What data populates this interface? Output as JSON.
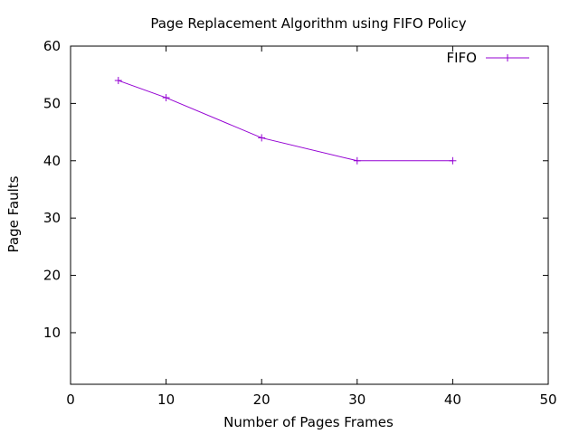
{
  "chart_data": {
    "type": "line",
    "title": "Page Replacement Algorithm using FIFO Policy",
    "xlabel": "Number of Pages Frames",
    "ylabel": "Page Faults",
    "xlim": [
      0,
      50
    ],
    "ylim": [
      1,
      60
    ],
    "xticks": [
      0,
      10,
      20,
      30,
      40,
      50
    ],
    "yticks": [
      10,
      20,
      30,
      40,
      50,
      60
    ],
    "grid": false,
    "legend_position": "top-right",
    "series": [
      {
        "name": "FIFO",
        "color": "#9400d3",
        "marker": "plus",
        "x": [
          5,
          10,
          20,
          30,
          40
        ],
        "y": [
          54,
          51,
          44,
          40,
          40
        ]
      }
    ]
  }
}
